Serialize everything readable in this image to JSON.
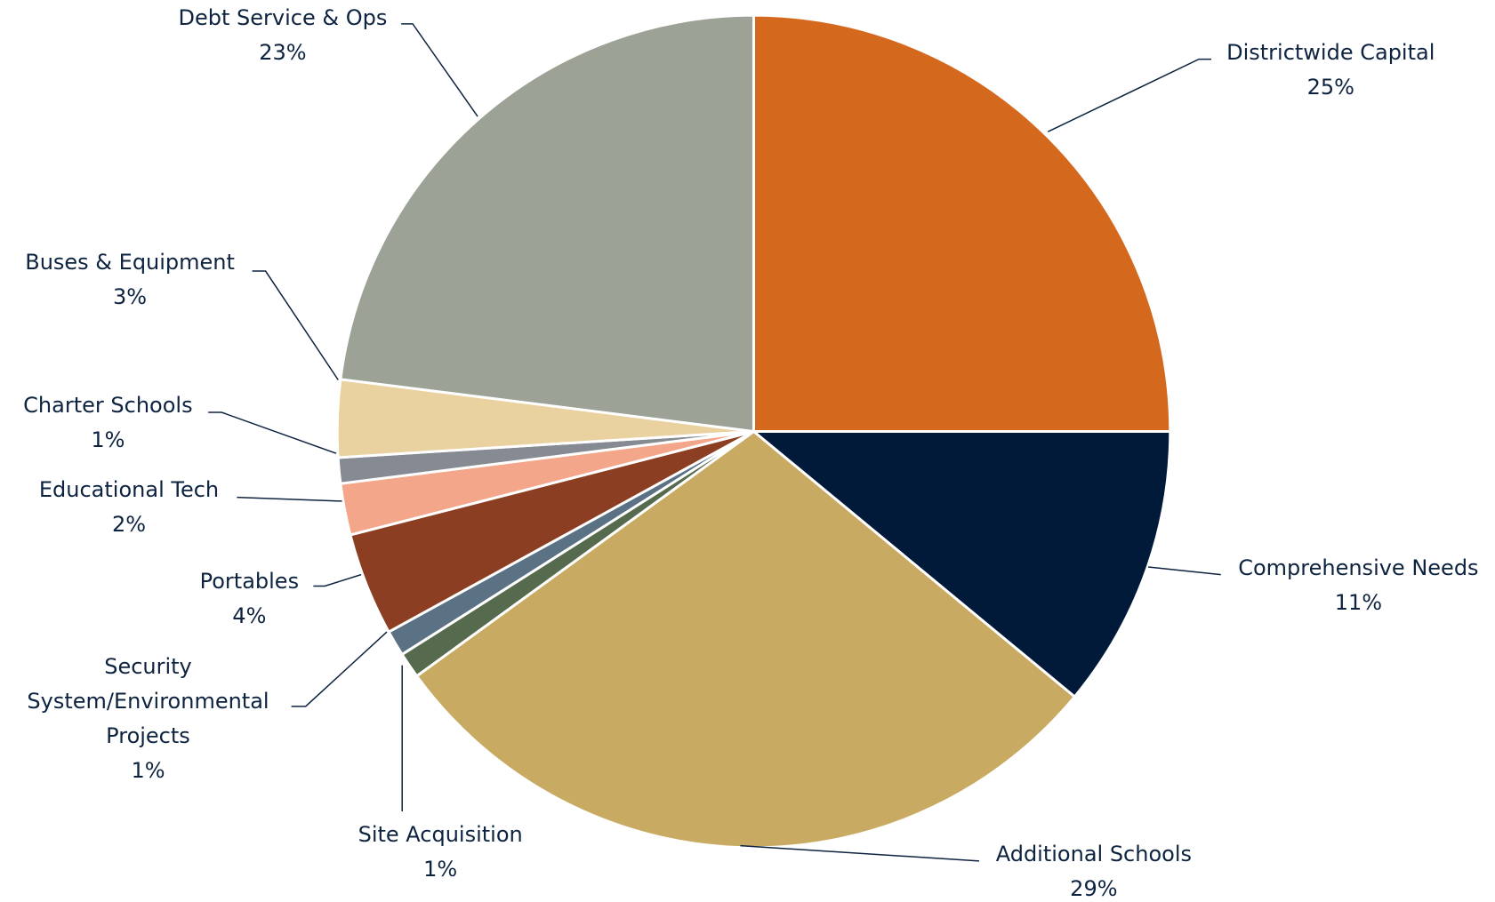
{
  "chart_data": {
    "type": "pie",
    "categories": [
      "Districtwide Capital",
      "Comprehensive Needs",
      "Additional Schools",
      "Site Acquisition",
      "Security System/Environmental Projects",
      "Portables",
      "Educational Tech",
      "Charter Schools",
      "Buses & Equipment",
      "Debt Service & Ops"
    ],
    "values": [
      25,
      11,
      29,
      1,
      1,
      4,
      2,
      1,
      3,
      23
    ],
    "value_labels": [
      "25%",
      "11%",
      "29%",
      "1%",
      "1%",
      "4%",
      "2%",
      "1%",
      "3%",
      "23%"
    ],
    "colors": [
      "#D4691E",
      "#021A3A",
      "#C8AA62",
      "#566B4D",
      "#5B7184",
      "#8B3E22",
      "#F4A68A",
      "#868A92",
      "#EAD1A0",
      "#9CA396"
    ]
  }
}
